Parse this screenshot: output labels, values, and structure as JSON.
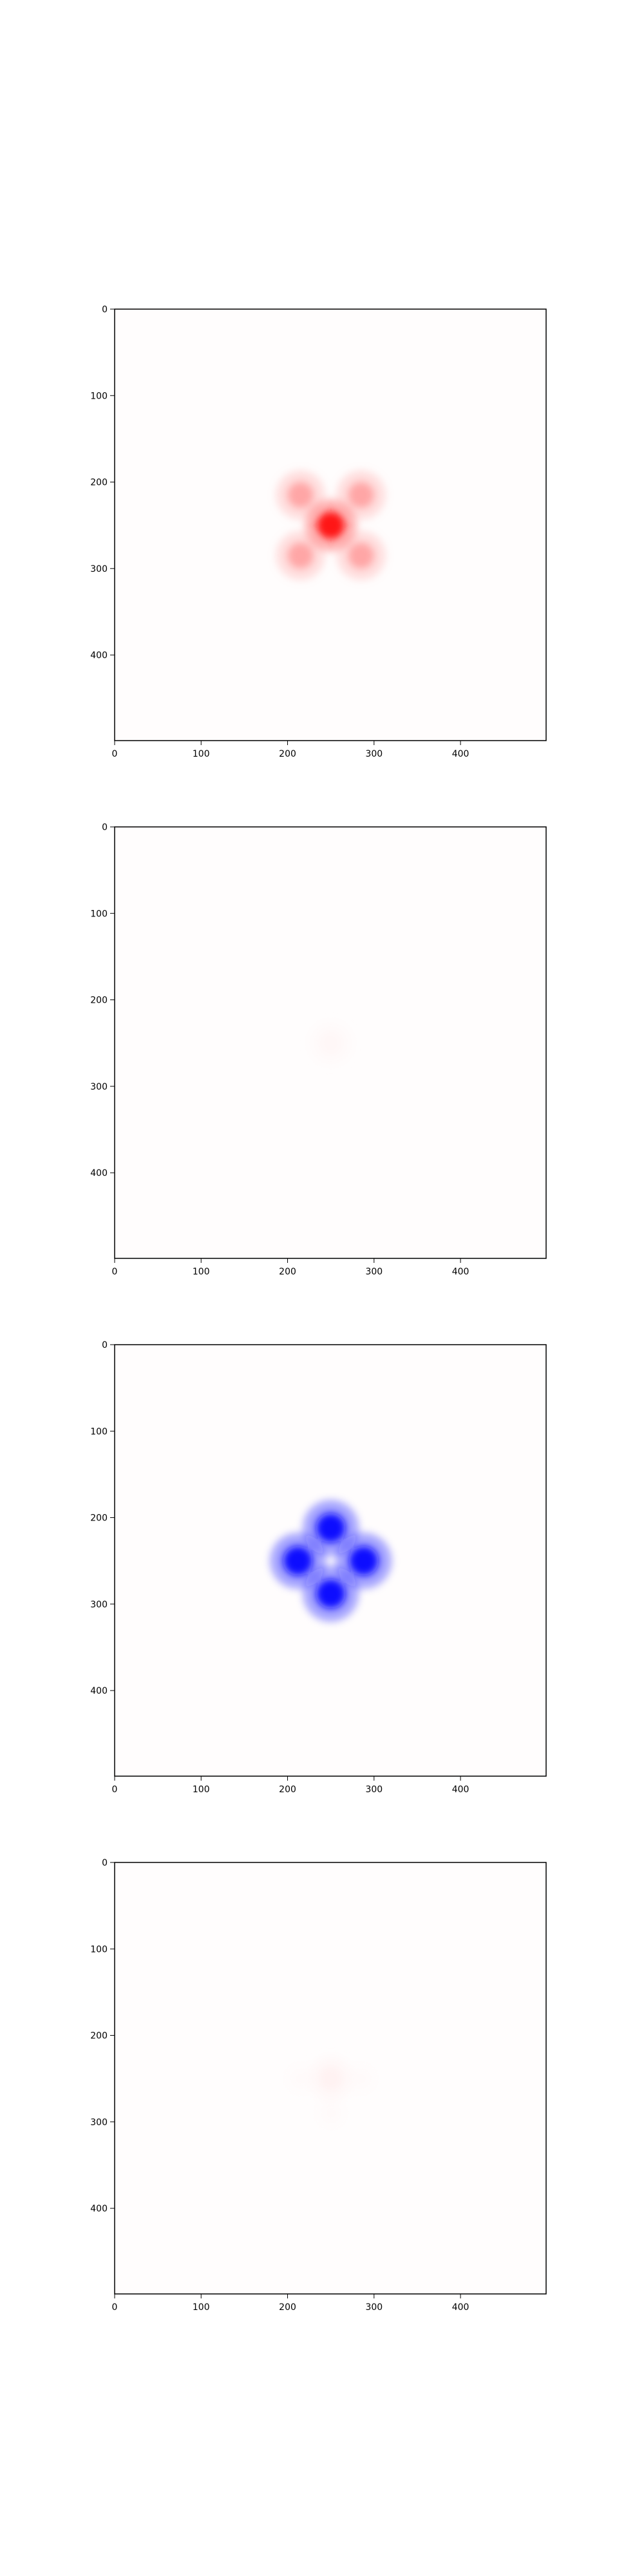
{
  "chart_data": [
    {
      "type": "heatmap",
      "colormap": "bwr",
      "x_ticks": [
        "0",
        "100",
        "200",
        "300",
        "400"
      ],
      "y_ticks": [
        "0",
        "100",
        "200",
        "300",
        "400"
      ],
      "xlim": [
        0,
        499
      ],
      "ylim": [
        499,
        0
      ],
      "grid": false,
      "blobs": [
        {
          "x": 250,
          "y": 250,
          "radius": 16,
          "intensity": 0.92
        },
        {
          "x": 215,
          "y": 215,
          "radius": 15,
          "intensity": 0.35
        },
        {
          "x": 285,
          "y": 215,
          "radius": 15,
          "intensity": 0.35
        },
        {
          "x": 215,
          "y": 285,
          "radius": 15,
          "intensity": 0.35
        },
        {
          "x": 285,
          "y": 285,
          "radius": 15,
          "intensity": 0.35
        }
      ]
    },
    {
      "type": "heatmap",
      "colormap": "bwr",
      "x_ticks": [
        "0",
        "100",
        "200",
        "300",
        "400"
      ],
      "y_ticks": [
        "0",
        "100",
        "200",
        "300",
        "400"
      ],
      "xlim": [
        0,
        499
      ],
      "ylim": [
        499,
        0
      ],
      "grid": false,
      "blobs": [
        {
          "x": 250,
          "y": 250,
          "radius": 14,
          "intensity": 0.03
        }
      ]
    },
    {
      "type": "heatmap",
      "colormap": "bwr",
      "x_ticks": [
        "0",
        "100",
        "200",
        "300",
        "400"
      ],
      "y_ticks": [
        "0",
        "100",
        "200",
        "300",
        "400"
      ],
      "xlim": [
        0,
        499
      ],
      "ylim": [
        499,
        0
      ],
      "grid": false,
      "blobs": [
        {
          "x": 250,
          "y": 212,
          "radius": 17,
          "intensity": -0.95
        },
        {
          "x": 250,
          "y": 288,
          "radius": 17,
          "intensity": -0.95
        },
        {
          "x": 212,
          "y": 250,
          "radius": 17,
          "intensity": -0.95
        },
        {
          "x": 288,
          "y": 250,
          "radius": 17,
          "intensity": -0.95
        }
      ]
    },
    {
      "type": "heatmap",
      "colormap": "bwr",
      "x_ticks": [
        "0",
        "100",
        "200",
        "300",
        "400"
      ],
      "y_ticks": [
        "0",
        "100",
        "200",
        "300",
        "400"
      ],
      "xlim": [
        0,
        499
      ],
      "ylim": [
        499,
        0
      ],
      "grid": false,
      "blobs": [
        {
          "x": 250,
          "y": 250,
          "radius": 14,
          "intensity": 0.05
        },
        {
          "x": 250,
          "y": 290,
          "radius": 10,
          "intensity": 0.02
        },
        {
          "x": 215,
          "y": 250,
          "radius": 10,
          "intensity": 0.02
        },
        {
          "x": 285,
          "y": 250,
          "radius": 10,
          "intensity": 0.02
        }
      ]
    }
  ]
}
